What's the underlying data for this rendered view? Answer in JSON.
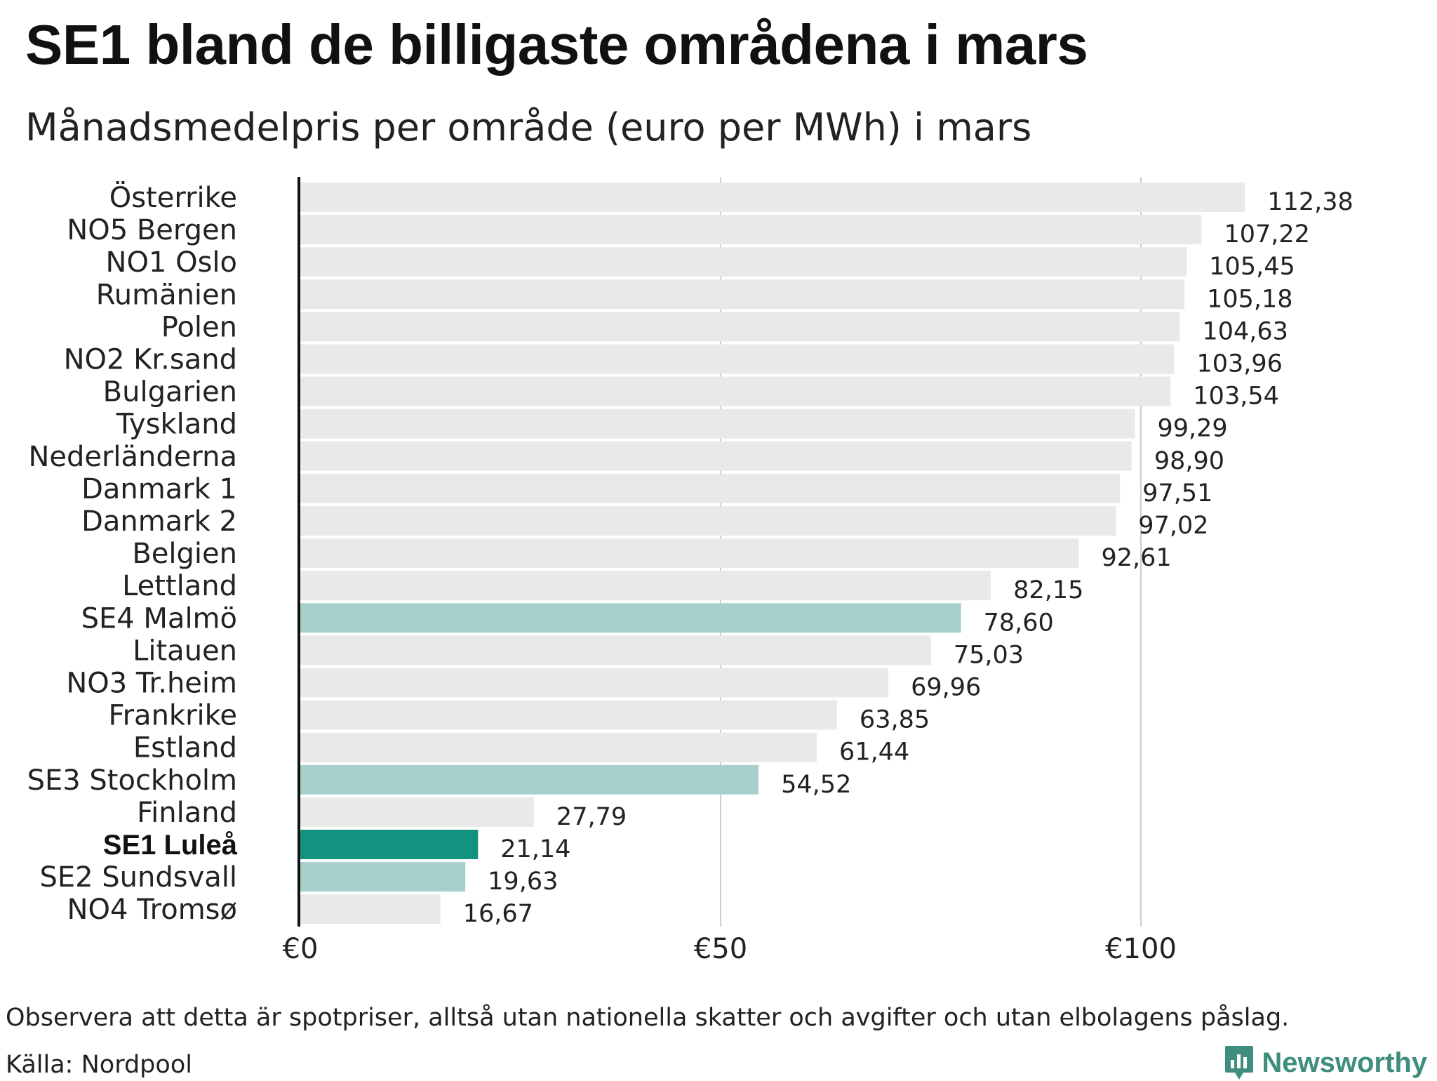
{
  "header": {
    "title": "SE1 bland de billigaste områdena i mars",
    "subtitle": "Månadsmedelpris per område (euro per MWh) i mars"
  },
  "footer": {
    "note": "Observera att detta är spotpriser, alltså utan nationella skatter och avgifter och utan elbolagens påslag.",
    "source": "Källa: Nordpool",
    "brand": "Newsworthy"
  },
  "colors": {
    "default_bar": "#e9e9e9",
    "swedish_bar": "#a8d0cb",
    "highlight_bar": "#13937f",
    "axis": "#111111",
    "grid": "#cccccc",
    "brand": "#3f8e7d"
  },
  "chart_data": {
    "type": "bar",
    "orientation": "horizontal",
    "title": "SE1 bland de billigaste områdena i mars",
    "subtitle": "Månadsmedelpris per område (euro per MWh) i mars",
    "xlabel": "",
    "ylabel": "",
    "xlim": [
      0,
      125
    ],
    "grid": true,
    "ticks": [
      {
        "value": 0,
        "label": "€0"
      },
      {
        "value": 50,
        "label": "€50"
      },
      {
        "value": 100,
        "label": "€100"
      }
    ],
    "categories": [
      "Österrike",
      "NO5 Bergen",
      "NO1 Oslo",
      "Rumänien",
      "Polen",
      "NO2 Kr.sand",
      "Bulgarien",
      "Tyskland",
      "Nederländerna",
      "Danmark 1",
      "Danmark 2",
      "Belgien",
      "Lettland",
      "SE4 Malmö",
      "Litauen",
      "NO3 Tr.heim",
      "Frankrike",
      "Estland",
      "SE3 Stockholm",
      "Finland",
      "SE1 Luleå",
      "SE2 Sundsvall",
      "NO4 Tromsø"
    ],
    "values": [
      112.38,
      107.22,
      105.45,
      105.18,
      104.63,
      103.96,
      103.54,
      99.29,
      98.9,
      97.51,
      97.02,
      92.61,
      82.15,
      78.6,
      75.03,
      69.96,
      63.85,
      61.44,
      54.52,
      27.79,
      21.14,
      19.63,
      16.67
    ],
    "value_labels": [
      "112,38",
      "107,22",
      "105,45",
      "105,18",
      "104,63",
      "103,96",
      "103,54",
      "99,29",
      "98,90",
      "97,51",
      "97,02",
      "92,61",
      "82,15",
      "78,60",
      "75,03",
      "69,96",
      "63,85",
      "61,44",
      "54,52",
      "27,79",
      "21,14",
      "19,63",
      "16,67"
    ],
    "groups": [
      "default",
      "default",
      "default",
      "default",
      "default",
      "default",
      "default",
      "default",
      "default",
      "default",
      "default",
      "default",
      "default",
      "swedish",
      "default",
      "default",
      "default",
      "default",
      "swedish",
      "default",
      "highlight",
      "swedish",
      "default"
    ]
  }
}
